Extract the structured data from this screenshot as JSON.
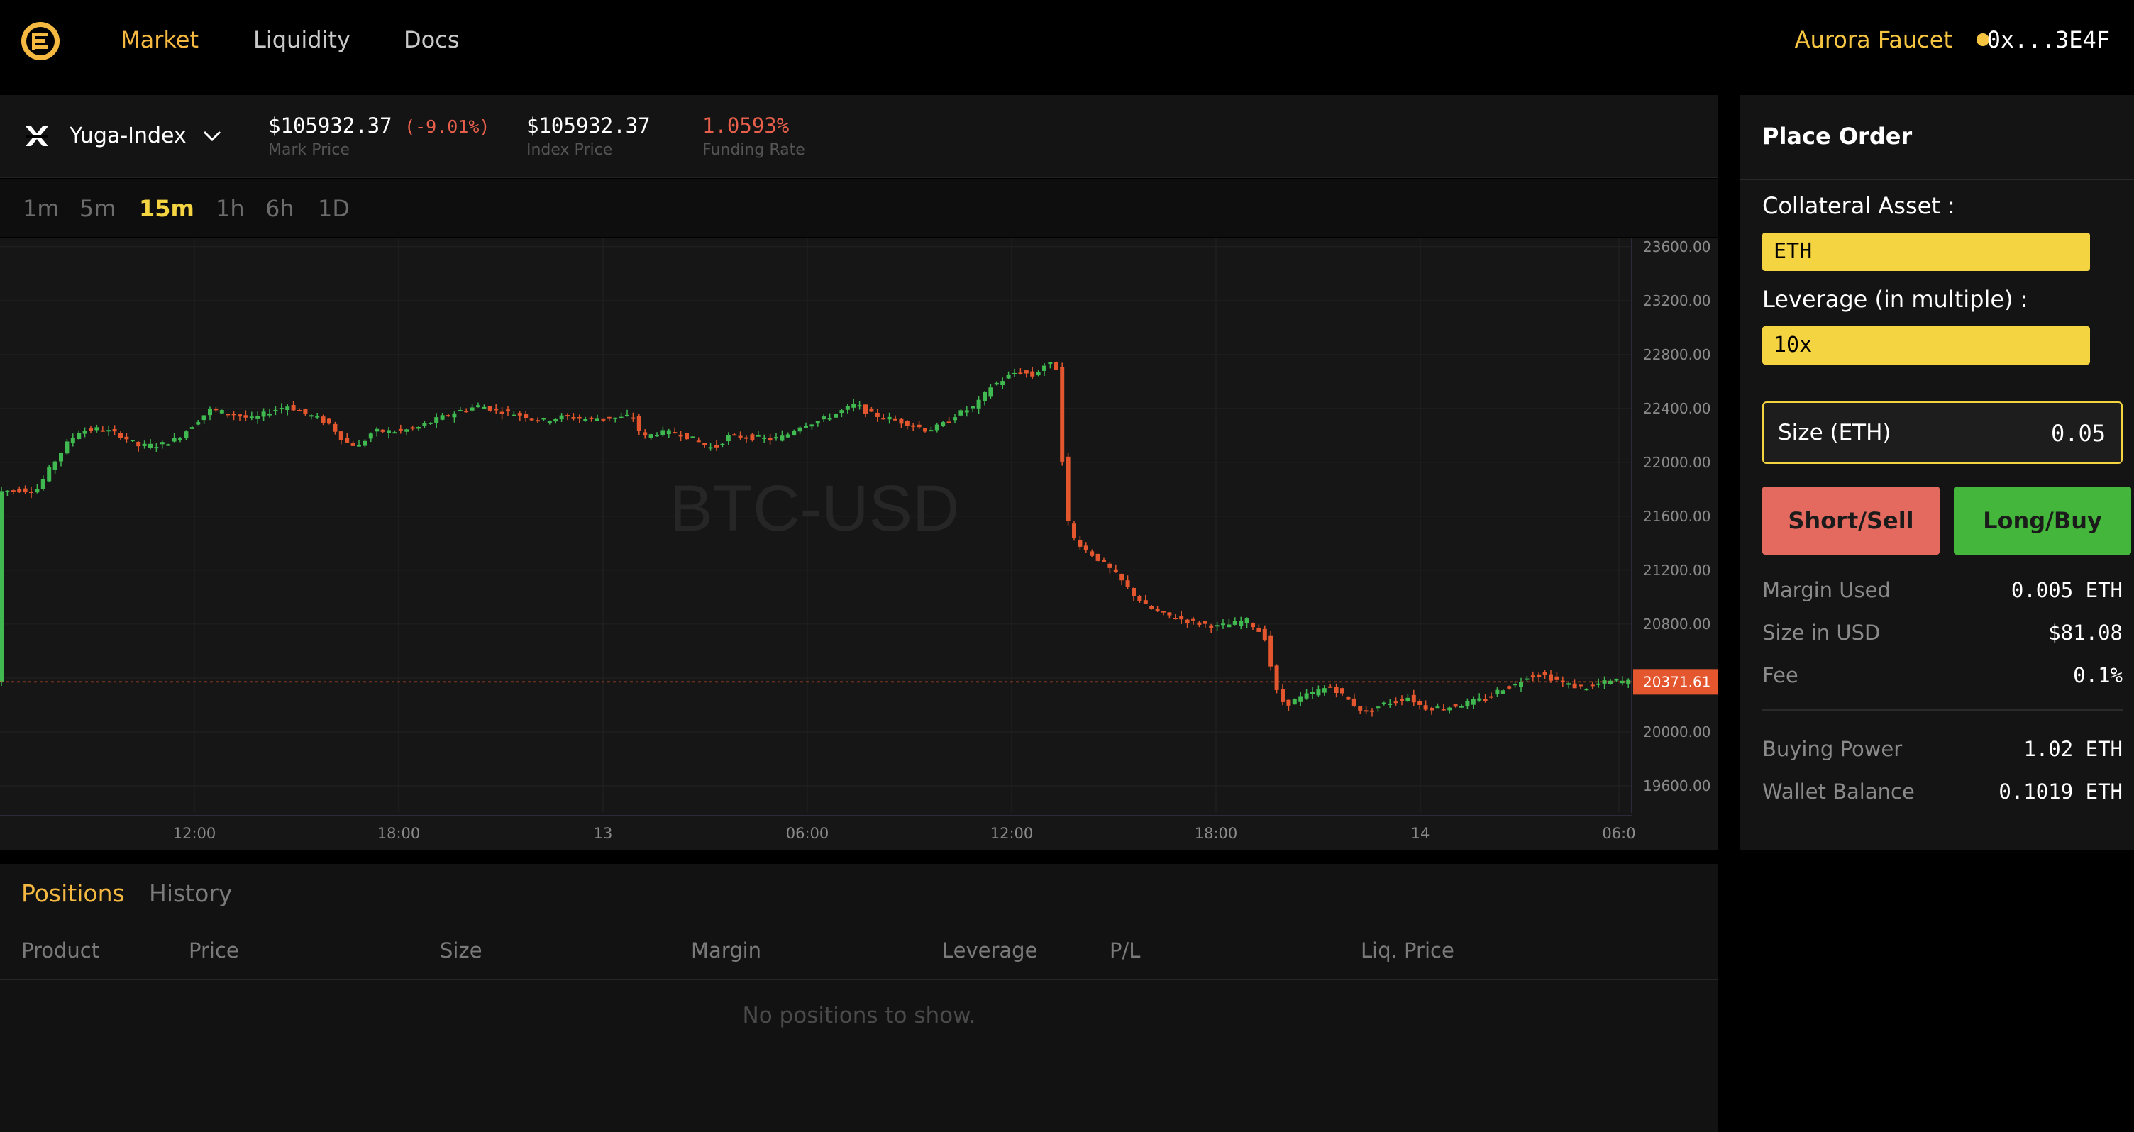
{
  "nav": {
    "items": [
      {
        "label": "Market",
        "active": true
      },
      {
        "label": "Liquidity",
        "active": false
      },
      {
        "label": "Docs",
        "active": false
      }
    ],
    "faucet_label": "Aurora Faucet",
    "wallet_address": "0x...3E4F",
    "colors": {
      "accent": "#f5b942",
      "wallet_dot": "#f5c542"
    }
  },
  "market": {
    "pair": "Yuga-Index",
    "mark_price": "$105932.37",
    "mark_change": "(-9.01%)",
    "mark_label": "Mark Price",
    "index_price": "$105932.37",
    "index_label": "Index Price",
    "funding_rate": "1.0593%",
    "funding_label": "Funding Rate"
  },
  "intervals": [
    {
      "label": "1m",
      "active": false
    },
    {
      "label": "5m",
      "active": false
    },
    {
      "label": "15m",
      "active": true
    },
    {
      "label": "1h",
      "active": false
    },
    {
      "label": "6h",
      "active": false
    },
    {
      "label": "1D",
      "active": false
    }
  ],
  "chart_data": {
    "type": "candlestick",
    "watermark": "BTC-USD",
    "y_ticks": [
      "23600.00",
      "23200.00",
      "22800.00",
      "22400.00",
      "22000.00",
      "21600.00",
      "21200.00",
      "20800.00",
      "20400.00",
      "20000.00",
      "19600.00"
    ],
    "x_ticks": [
      "12:00",
      "18:00",
      "13",
      "06:00",
      "12:00",
      "18:00",
      "14",
      "06:0"
    ],
    "ylim": [
      19400,
      23620
    ],
    "current_price": 20371.61,
    "current_price_label": "20371.61",
    "colors": {
      "up": "#3fb950",
      "down": "#e4572e",
      "price_line": "#e4572e"
    },
    "series_path": [
      [
        0,
        21780
      ],
      [
        30,
        21800
      ],
      [
        55,
        21790
      ],
      [
        80,
        22000
      ],
      [
        100,
        22150
      ],
      [
        115,
        22230
      ],
      [
        145,
        22250
      ],
      [
        175,
        22200
      ],
      [
        200,
        22120
      ],
      [
        230,
        22130
      ],
      [
        255,
        22180
      ],
      [
        280,
        22300
      ],
      [
        300,
        22390
      ],
      [
        330,
        22360
      ],
      [
        360,
        22320
      ],
      [
        390,
        22390
      ],
      [
        410,
        22420
      ],
      [
        430,
        22370
      ],
      [
        455,
        22320
      ],
      [
        470,
        22280
      ],
      [
        490,
        22150
      ],
      [
        510,
        22120
      ],
      [
        530,
        22230
      ],
      [
        560,
        22230
      ],
      [
        590,
        22250
      ],
      [
        620,
        22320
      ],
      [
        650,
        22380
      ],
      [
        680,
        22420
      ],
      [
        710,
        22380
      ],
      [
        740,
        22350
      ],
      [
        770,
        22310
      ],
      [
        800,
        22340
      ],
      [
        830,
        22320
      ],
      [
        860,
        22330
      ],
      [
        880,
        22330
      ],
      [
        895,
        22350
      ],
      [
        910,
        22180
      ],
      [
        930,
        22220
      ],
      [
        960,
        22220
      ],
      [
        990,
        22150
      ],
      [
        1010,
        22100
      ],
      [
        1030,
        22190
      ],
      [
        1060,
        22190
      ],
      [
        1090,
        22170
      ],
      [
        1110,
        22190
      ],
      [
        1130,
        22270
      ],
      [
        1160,
        22310
      ],
      [
        1190,
        22380
      ],
      [
        1210,
        22430
      ],
      [
        1230,
        22360
      ],
      [
        1260,
        22320
      ],
      [
        1290,
        22280
      ],
      [
        1310,
        22240
      ],
      [
        1330,
        22270
      ],
      [
        1350,
        22350
      ],
      [
        1380,
        22420
      ],
      [
        1400,
        22560
      ],
      [
        1420,
        22620
      ],
      [
        1440,
        22680
      ],
      [
        1460,
        22640
      ],
      [
        1480,
        22740
      ],
      [
        1495,
        22690
      ],
      [
        1505,
        21650
      ],
      [
        1515,
        21450
      ],
      [
        1535,
        21350
      ],
      [
        1560,
        21250
      ],
      [
        1580,
        21150
      ],
      [
        1600,
        21030
      ],
      [
        1620,
        20930
      ],
      [
        1640,
        20880
      ],
      [
        1660,
        20850
      ],
      [
        1680,
        20820
      ],
      [
        1700,
        20800
      ],
      [
        1720,
        20780
      ],
      [
        1740,
        20800
      ],
      [
        1760,
        20830
      ],
      [
        1775,
        20770
      ],
      [
        1790,
        20680
      ],
      [
        1800,
        20330
      ],
      [
        1815,
        20200
      ],
      [
        1835,
        20250
      ],
      [
        1860,
        20300
      ],
      [
        1880,
        20340
      ],
      [
        1895,
        20280
      ],
      [
        1910,
        20210
      ],
      [
        1930,
        20140
      ],
      [
        1950,
        20200
      ],
      [
        1970,
        20230
      ],
      [
        1990,
        20260
      ],
      [
        2010,
        20180
      ],
      [
        2040,
        20180
      ],
      [
        2070,
        20210
      ],
      [
        2100,
        20250
      ],
      [
        2120,
        20320
      ],
      [
        2140,
        20350
      ],
      [
        2160,
        20430
      ],
      [
        2180,
        20420
      ],
      [
        2200,
        20380
      ],
      [
        2220,
        20340
      ],
      [
        2240,
        20330
      ],
      [
        2260,
        20360
      ],
      [
        2280,
        20380
      ],
      [
        2300,
        20372
      ]
    ]
  },
  "positions": {
    "tabs": [
      {
        "label": "Positions",
        "active": true
      },
      {
        "label": "History",
        "active": false
      }
    ],
    "columns": [
      "Product",
      "Price",
      "Size",
      "Margin",
      "Leverage",
      "P/L",
      "Liq. Price"
    ],
    "empty_text": "No positions to show."
  },
  "order": {
    "title": "Place Order",
    "collateral_label": "Collateral Asset :",
    "collateral_value": "ETH",
    "leverage_label": "Leverage (in multiple) :",
    "leverage_value": "10x",
    "size_label": "Size (ETH)",
    "size_value": "0.05",
    "short_label": "Short/Sell",
    "long_label": "Long/Buy",
    "info": [
      {
        "label": "Margin Used",
        "value": "0.005 ETH"
      },
      {
        "label": "Size in USD",
        "value": "$81.08"
      },
      {
        "label": "Fee",
        "value": "0.1%"
      }
    ],
    "balances": [
      {
        "label": "Buying Power",
        "value": "1.02 ETH"
      },
      {
        "label": "Wallet Balance",
        "value": "0.1019 ETH"
      }
    ],
    "colors": {
      "highlight": "#f5d442",
      "short": "#e46a5f",
      "long": "#44b63c"
    }
  }
}
